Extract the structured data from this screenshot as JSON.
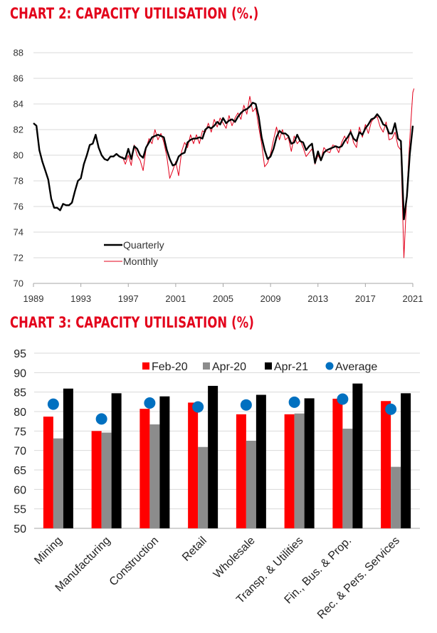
{
  "chart_data": [
    {
      "type": "line",
      "title": "CHART 2: CAPACITY UTILISATION (%.)",
      "xlabel": "",
      "ylabel": "",
      "ylim": [
        70,
        88
      ],
      "y_ticks": [
        "70",
        "72",
        "74",
        "76",
        "78",
        "80",
        "82",
        "84",
        "86",
        "88"
      ],
      "xlim": [
        1989,
        2021
      ],
      "x_ticks": [
        "1989",
        "1993",
        "1997",
        "2001",
        "2005",
        "2009",
        "2013",
        "2017",
        "2021"
      ],
      "grid": "horizontal",
      "legend_position": "bottom-left",
      "colors": {
        "quarterly": "#000000",
        "monthly": "#e3001b"
      },
      "series": [
        {
          "name": "Quarterly",
          "x": [
            1989.0,
            1989.25,
            1989.5,
            1989.75,
            1990.0,
            1990.25,
            1990.5,
            1990.75,
            1991.0,
            1991.25,
            1991.5,
            1991.75,
            1992.0,
            1992.25,
            1992.5,
            1992.75,
            1993.0,
            1993.25,
            1993.5,
            1993.75,
            1994.0,
            1994.25,
            1994.5,
            1994.75,
            1995.0,
            1995.25,
            1995.5,
            1995.75,
            1996.0,
            1996.25,
            1996.5,
            1996.75,
            1997.0,
            1997.25,
            1997.5,
            1997.75,
            1998.0,
            1998.25,
            1998.5,
            1998.75,
            1999.0,
            1999.25,
            1999.5,
            1999.75,
            2000.0,
            2000.25,
            2000.5,
            2000.75,
            2001.0,
            2001.25,
            2001.5,
            2001.75,
            2002.0,
            2002.25,
            2002.5,
            2002.75,
            2003.0,
            2003.25,
            2003.5,
            2003.75,
            2004.0,
            2004.25,
            2004.5,
            2004.75,
            2005.0,
            2005.25,
            2005.5,
            2005.75,
            2006.0,
            2006.25,
            2006.5,
            2006.75,
            2007.0,
            2007.25,
            2007.5,
            2007.75,
            2008.0,
            2008.25,
            2008.5,
            2008.75,
            2009.0,
            2009.25,
            2009.5,
            2009.75,
            2010.0,
            2010.25,
            2010.5,
            2010.75,
            2011.0,
            2011.25,
            2011.5,
            2011.75,
            2012.0,
            2012.25,
            2012.5,
            2012.75,
            2013.0,
            2013.25,
            2013.5,
            2013.75,
            2014.0,
            2014.25,
            2014.5,
            2014.75,
            2015.0,
            2015.25,
            2015.5,
            2015.75,
            2016.0,
            2016.25,
            2016.5,
            2016.75,
            2017.0,
            2017.25,
            2017.5,
            2017.75,
            2018.0,
            2018.25,
            2018.5,
            2018.75,
            2019.0,
            2019.25,
            2019.5,
            2019.75,
            2020.0,
            2020.25,
            2020.5,
            2020.75,
            2021.0
          ],
          "values": [
            82.5,
            82.3,
            80.4,
            79.5,
            78.8,
            78.1,
            76.6,
            75.9,
            75.9,
            75.7,
            76.2,
            76.1,
            76.1,
            76.3,
            77.2,
            78.0,
            78.2,
            79.3,
            80.0,
            80.8,
            80.9,
            81.6,
            80.6,
            80.0,
            79.7,
            79.6,
            79.9,
            79.9,
            80.1,
            79.9,
            79.8,
            79.7,
            80.5,
            79.7,
            80.7,
            80.5,
            80.0,
            79.8,
            80.6,
            81.0,
            81.4,
            81.5,
            81.6,
            81.5,
            81.4,
            80.4,
            79.7,
            79.2,
            79.3,
            79.9,
            80.1,
            80.2,
            81.0,
            81.2,
            81.3,
            81.3,
            81.4,
            81.3,
            82.0,
            82.2,
            82.1,
            82.3,
            82.6,
            82.4,
            82.9,
            82.5,
            82.7,
            82.8,
            82.6,
            83.0,
            83.3,
            83.5,
            83.6,
            83.8,
            84.1,
            84.0,
            83.0,
            81.4,
            80.4,
            79.7,
            79.9,
            80.5,
            81.4,
            81.9,
            81.7,
            81.7,
            81.5,
            80.9,
            81.0,
            81.6,
            81.1,
            81.0,
            80.4,
            80.7,
            80.9,
            79.4,
            80.3,
            79.6,
            80.2,
            80.4,
            80.5,
            80.6,
            80.7,
            80.6,
            80.7,
            81.1,
            81.4,
            81.8,
            81.3,
            81.1,
            81.8,
            81.6,
            82.1,
            82.4,
            82.8,
            82.9,
            83.2,
            82.9,
            82.4,
            82.3,
            81.7,
            81.7,
            82.5,
            81.3,
            81.1,
            75.0,
            76.8,
            80.1,
            82.3
          ]
        },
        {
          "name": "Monthly",
          "x": [
            1996.5,
            1996.75,
            1997.0,
            1997.25,
            1997.5,
            1997.75,
            1998.0,
            1998.25,
            1998.5,
            1998.75,
            1999.0,
            1999.25,
            1999.5,
            1999.75,
            2000.0,
            2000.25,
            2000.5,
            2000.75,
            2001.0,
            2001.25,
            2001.5,
            2001.75,
            2002.0,
            2002.25,
            2002.5,
            2002.75,
            2003.0,
            2003.25,
            2003.5,
            2003.75,
            2004.0,
            2004.25,
            2004.5,
            2004.75,
            2005.0,
            2005.25,
            2005.5,
            2005.75,
            2006.0,
            2006.25,
            2006.5,
            2006.75,
            2007.0,
            2007.25,
            2007.5,
            2007.75,
            2008.0,
            2008.25,
            2008.5,
            2008.75,
            2009.0,
            2009.25,
            2009.5,
            2009.75,
            2010.0,
            2010.25,
            2010.5,
            2010.75,
            2011.0,
            2011.25,
            2011.5,
            2011.75,
            2012.0,
            2012.25,
            2012.5,
            2012.75,
            2013.0,
            2013.25,
            2013.5,
            2013.75,
            2014.0,
            2014.25,
            2014.5,
            2014.75,
            2015.0,
            2015.25,
            2015.5,
            2015.75,
            2016.0,
            2016.25,
            2016.5,
            2016.75,
            2017.0,
            2017.25,
            2017.5,
            2017.75,
            2018.0,
            2018.25,
            2018.5,
            2018.75,
            2019.0,
            2019.25,
            2019.5,
            2019.75,
            2020.0,
            2020.25,
            2020.5,
            2020.75,
            2021.0,
            2021.1
          ],
          "values": [
            79.9,
            79.3,
            80.0,
            79.2,
            80.8,
            80.0,
            79.6,
            78.8,
            80.5,
            81.3,
            80.9,
            82.0,
            81.2,
            81.7,
            81.0,
            79.9,
            78.2,
            78.8,
            79.5,
            78.4,
            80.3,
            81.0,
            80.6,
            81.6,
            80.9,
            81.6,
            80.9,
            81.9,
            81.8,
            82.5,
            81.8,
            82.8,
            82.2,
            82.9,
            82.5,
            82.1,
            83.1,
            82.3,
            82.9,
            83.3,
            82.8,
            83.9,
            83.2,
            84.6,
            83.4,
            83.7,
            82.2,
            80.9,
            79.1,
            79.4,
            80.1,
            81.2,
            82.2,
            81.2,
            82.0,
            81.2,
            81.4,
            80.3,
            81.5,
            80.9,
            81.2,
            80.6,
            79.9,
            80.2,
            80.5,
            79.3,
            80.0,
            79.6,
            80.6,
            80.3,
            80.2,
            80.8,
            80.7,
            80.2,
            81.0,
            81.5,
            80.9,
            82.0,
            81.0,
            80.6,
            82.2,
            81.4,
            82.4,
            81.7,
            82.6,
            82.9,
            83.0,
            82.2,
            81.8,
            82.6,
            81.2,
            81.3,
            81.8,
            80.7,
            80.4,
            72.0,
            77.1,
            81.3,
            84.9,
            85.2
          ]
        }
      ]
    },
    {
      "type": "bar",
      "title": "CHART 3: CAPACITY UTILISATION (%)",
      "xlabel": "",
      "ylabel": "",
      "ylim": [
        50,
        95
      ],
      "y_ticks": [
        "50",
        "55",
        "60",
        "65",
        "70",
        "75",
        "80",
        "85",
        "90",
        "95"
      ],
      "grid": "horizontal",
      "legend_position": "top-right",
      "categories": [
        "Mining",
        "Manufacturing",
        "Construction",
        "Retail",
        "Wholesale",
        "Transp. & Utilities",
        "Fin., Bus. & Prop.",
        "Rec. & Pers. Services"
      ],
      "series": [
        {
          "name": "Feb-20",
          "kind": "bar",
          "color": "#ff0000",
          "values": [
            78.7,
            75.0,
            80.7,
            82.3,
            79.3,
            79.3,
            83.3,
            82.7
          ]
        },
        {
          "name": "Apr-20",
          "kind": "bar",
          "color": "#8c8c8c",
          "values": [
            73.1,
            74.6,
            76.7,
            70.9,
            72.5,
            79.5,
            75.6,
            65.8
          ]
        },
        {
          "name": "Apr-21",
          "kind": "bar",
          "color": "#000000",
          "values": [
            85.9,
            84.7,
            83.9,
            86.6,
            84.3,
            83.4,
            87.2,
            84.7
          ]
        },
        {
          "name": "Average",
          "kind": "marker",
          "color": "#0070c0",
          "values": [
            81.9,
            78.1,
            82.2,
            81.2,
            81.7,
            82.4,
            83.2,
            80.6
          ]
        }
      ]
    }
  ]
}
